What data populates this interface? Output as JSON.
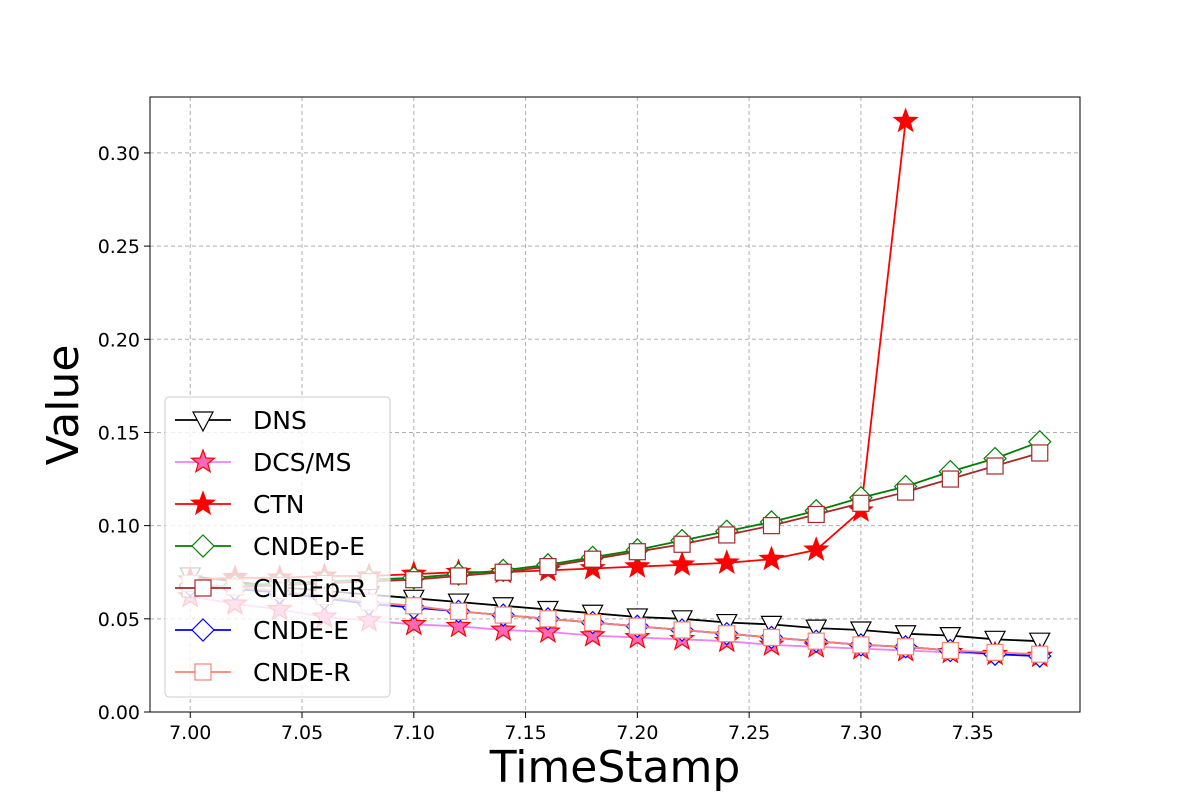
{
  "chart_data": {
    "type": "line",
    "xlabel": "TimeStamp",
    "ylabel": "Value",
    "xlim": [
      6.982,
      7.398
    ],
    "ylim": [
      0.0,
      0.33
    ],
    "xticks": [
      "7.00",
      "7.05",
      "7.10",
      "7.15",
      "7.20",
      "7.25",
      "7.30",
      "7.35"
    ],
    "yticks": [
      "0.00",
      "0.05",
      "0.10",
      "0.15",
      "0.20",
      "0.25",
      "0.30"
    ],
    "grid": true,
    "legend_position": "lower-left",
    "series": [
      {
        "name": "DNS",
        "color": "#000000",
        "marker": "triangle-down",
        "marker_fill": "#ffffff",
        "x": [
          7.0,
          7.02,
          7.04,
          7.06,
          7.08,
          7.1,
          7.12,
          7.14,
          7.16,
          7.18,
          7.2,
          7.22,
          7.24,
          7.26,
          7.28,
          7.3,
          7.32,
          7.34,
          7.36,
          7.38
        ],
        "y": [
          0.073,
          0.07,
          0.067,
          0.065,
          0.063,
          0.061,
          0.059,
          0.057,
          0.055,
          0.053,
          0.051,
          0.05,
          0.048,
          0.047,
          0.045,
          0.044,
          0.042,
          0.041,
          0.039,
          0.038
        ]
      },
      {
        "name": "DCS/MS",
        "color": "#ee82ee",
        "marker": "star",
        "marker_fill": "#ff69b4",
        "marker_edge": "#ff0000",
        "x": [
          7.0,
          7.02,
          7.04,
          7.06,
          7.08,
          7.1,
          7.12,
          7.14,
          7.16,
          7.18,
          7.2,
          7.22,
          7.24,
          7.26,
          7.28,
          7.3,
          7.32,
          7.34,
          7.36,
          7.38
        ],
        "y": [
          0.062,
          0.058,
          0.055,
          0.051,
          0.049,
          0.047,
          0.046,
          0.044,
          0.043,
          0.041,
          0.04,
          0.039,
          0.038,
          0.036,
          0.035,
          0.034,
          0.033,
          0.032,
          0.031,
          0.03
        ]
      },
      {
        "name": "CTN",
        "color": "#ff0000",
        "marker": "star",
        "marker_fill": "#ff0000",
        "marker_edge": "#ff0000",
        "x": [
          7.0,
          7.02,
          7.04,
          7.06,
          7.08,
          7.1,
          7.12,
          7.14,
          7.16,
          7.18,
          7.2,
          7.22,
          7.24,
          7.26,
          7.28,
          7.3,
          7.32
        ],
        "y": [
          0.071,
          0.072,
          0.072,
          0.073,
          0.073,
          0.074,
          0.075,
          0.075,
          0.076,
          0.077,
          0.078,
          0.079,
          0.08,
          0.082,
          0.087,
          0.108,
          0.317
        ]
      },
      {
        "name": "CNDEp-E",
        "color": "#008000",
        "marker": "diamond",
        "marker_fill": "#ffffff",
        "x": [
          7.0,
          7.02,
          7.04,
          7.06,
          7.08,
          7.1,
          7.12,
          7.14,
          7.16,
          7.18,
          7.2,
          7.22,
          7.24,
          7.26,
          7.28,
          7.3,
          7.32,
          7.34,
          7.36,
          7.38
        ],
        "y": [
          0.067,
          0.068,
          0.069,
          0.07,
          0.071,
          0.072,
          0.074,
          0.076,
          0.079,
          0.083,
          0.087,
          0.092,
          0.097,
          0.102,
          0.108,
          0.115,
          0.121,
          0.129,
          0.136,
          0.145
        ]
      },
      {
        "name": "CNDEp-R",
        "color": "#a52a2a",
        "marker": "square",
        "marker_fill": "#ffffff",
        "x": [
          7.0,
          7.02,
          7.04,
          7.06,
          7.08,
          7.1,
          7.12,
          7.14,
          7.16,
          7.18,
          7.2,
          7.22,
          7.24,
          7.26,
          7.28,
          7.3,
          7.32,
          7.34,
          7.36,
          7.38
        ],
        "y": [
          0.066,
          0.067,
          0.068,
          0.069,
          0.07,
          0.071,
          0.073,
          0.075,
          0.078,
          0.082,
          0.086,
          0.09,
          0.095,
          0.1,
          0.106,
          0.112,
          0.118,
          0.125,
          0.132,
          0.139
        ]
      },
      {
        "name": "CNDE-E",
        "color": "#0000ff",
        "marker": "diamond",
        "marker_fill": "#ffffff",
        "x": [
          7.0,
          7.02,
          7.04,
          7.06,
          7.08,
          7.1,
          7.12,
          7.14,
          7.16,
          7.18,
          7.2,
          7.22,
          7.24,
          7.26,
          7.28,
          7.3,
          7.32,
          7.34,
          7.36,
          7.38
        ],
        "y": [
          0.068,
          0.066,
          0.064,
          0.061,
          0.058,
          0.056,
          0.054,
          0.052,
          0.05,
          0.048,
          0.046,
          0.044,
          0.042,
          0.04,
          0.038,
          0.036,
          0.035,
          0.033,
          0.031,
          0.03
        ]
      },
      {
        "name": "CNDE-R",
        "color": "#fa8072",
        "marker": "square",
        "marker_fill": "#ffffff",
        "x": [
          7.0,
          7.02,
          7.04,
          7.06,
          7.08,
          7.1,
          7.12,
          7.14,
          7.16,
          7.18,
          7.2,
          7.22,
          7.24,
          7.26,
          7.28,
          7.3,
          7.32,
          7.34,
          7.36,
          7.38
        ],
        "y": [
          0.069,
          0.067,
          0.065,
          0.062,
          0.059,
          0.057,
          0.054,
          0.052,
          0.05,
          0.048,
          0.046,
          0.044,
          0.042,
          0.04,
          0.038,
          0.036,
          0.035,
          0.033,
          0.032,
          0.031
        ]
      }
    ]
  }
}
